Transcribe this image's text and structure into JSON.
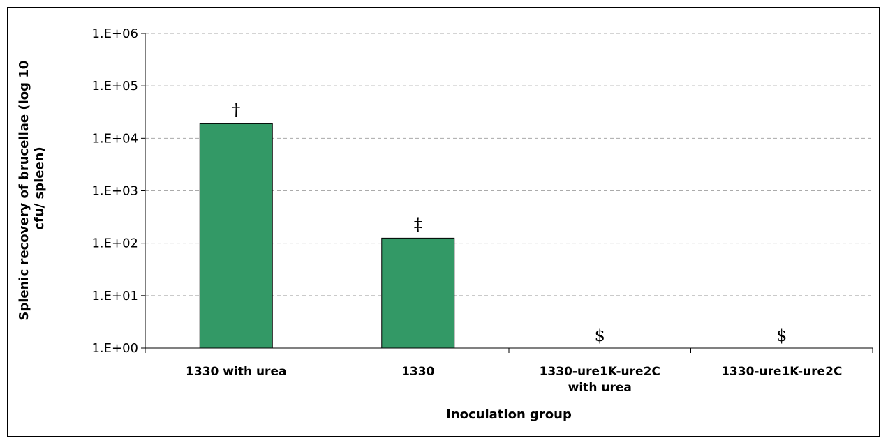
{
  "chart_data": {
    "type": "bar",
    "scale": "log",
    "categories": [
      [
        "1330 with urea"
      ],
      [
        "1330"
      ],
      [
        "1330-ure1K-ure2C",
        "with urea"
      ],
      [
        "1330-ure1K-ure2C"
      ]
    ],
    "values": [
      19000,
      125,
      null,
      null
    ],
    "annotations": [
      "†",
      "‡",
      "$",
      "$"
    ],
    "ylim": [
      1,
      1000000
    ],
    "yticks": [
      {
        "value": 1,
        "label": "1.E+00"
      },
      {
        "value": 10,
        "label": "1.E+01"
      },
      {
        "value": 100,
        "label": "1.E+02"
      },
      {
        "value": 1000,
        "label": "1.E+03"
      },
      {
        "value": 10000,
        "label": "1.E+04"
      },
      {
        "value": 100000,
        "label": "1.E+05"
      },
      {
        "value": 1000000,
        "label": "1.E+06"
      }
    ],
    "ylabel": [
      "Splenic recovery of brucellae (log 10",
      "cfu/ spleen)"
    ],
    "xlabel": "Inoculation group",
    "grid": true,
    "bar_color": "#339966"
  }
}
